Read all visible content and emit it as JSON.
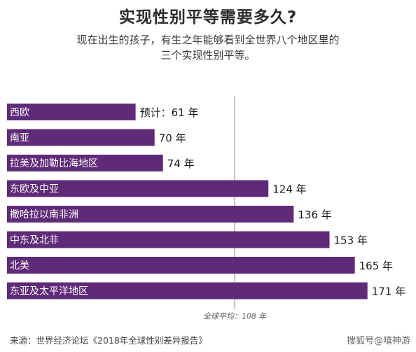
{
  "header": {
    "title": "实现性别平等需要多久?",
    "subtitle_line1": "现在出生的孩子，有生之年能够看到全世界八个地区里的",
    "subtitle_line2": "三个实现性别平等。"
  },
  "chart_data": {
    "type": "bar",
    "orientation": "horizontal",
    "title": "实现性别平等需要多久?",
    "categories": [
      "西欧",
      "南亚",
      "拉美及加勒比海地区",
      "东欧及中亚",
      "撒哈拉以南非洲",
      "中东及北非",
      "北美",
      "东亚及太平洋地区"
    ],
    "values": [
      61,
      70,
      74,
      124,
      136,
      153,
      165,
      171
    ],
    "value_labels": [
      "预计：61 年",
      "70 年",
      "74 年",
      "124 年",
      "136 年",
      "153 年",
      "165 年",
      "171 年"
    ],
    "bar_color": "#5f2a78",
    "average": {
      "value": 108,
      "label": "全球平均：108 年"
    },
    "grid": false,
    "legend": "none"
  },
  "footer": {
    "source": "来源：世界经济论坛《2018年全球性别差异报告》",
    "watermark": "搜狐号@嘻神游"
  }
}
